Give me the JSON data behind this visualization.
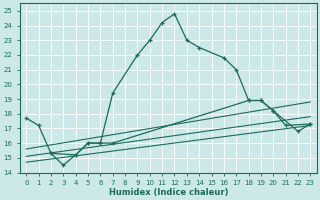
{
  "xlabel": "Humidex (Indice chaleur)",
  "bg_color": "#cce8e8",
  "grid_color": "#b8d8d8",
  "line_color": "#1a6b5a",
  "xlim": [
    -0.5,
    23.5
  ],
  "ylim": [
    14,
    25.5
  ],
  "yticks": [
    14,
    15,
    16,
    17,
    18,
    19,
    20,
    21,
    22,
    23,
    24,
    25
  ],
  "xticks": [
    0,
    1,
    2,
    3,
    4,
    5,
    6,
    7,
    8,
    9,
    10,
    11,
    12,
    13,
    14,
    15,
    16,
    17,
    18,
    19,
    20,
    21,
    22,
    23
  ],
  "curve1_x": [
    0,
    1,
    2,
    4,
    5,
    6,
    7,
    9,
    10,
    11,
    12,
    13,
    14,
    16,
    17,
    18,
    19,
    20,
    22,
    23
  ],
  "curve1_y": [
    17.7,
    17.2,
    15.3,
    15.2,
    16.0,
    16.0,
    19.4,
    22.0,
    23.0,
    24.2,
    24.8,
    23.0,
    22.5,
    21.8,
    21.0,
    18.9,
    18.9,
    18.2,
    16.8,
    17.3
  ],
  "curve2_x": [
    2,
    3,
    4,
    5,
    6,
    7,
    18,
    19,
    20,
    21,
    23
  ],
  "curve2_y": [
    15.3,
    14.5,
    15.2,
    16.0,
    16.0,
    16.0,
    18.9,
    18.9,
    18.2,
    17.2,
    17.3
  ],
  "line3_x": [
    0,
    23
  ],
  "line3_y": [
    15.6,
    18.8
  ],
  "line4_x": [
    0,
    23
  ],
  "line4_y": [
    15.1,
    17.8
  ],
  "line5_x": [
    0,
    23
  ],
  "line5_y": [
    14.7,
    17.2
  ]
}
